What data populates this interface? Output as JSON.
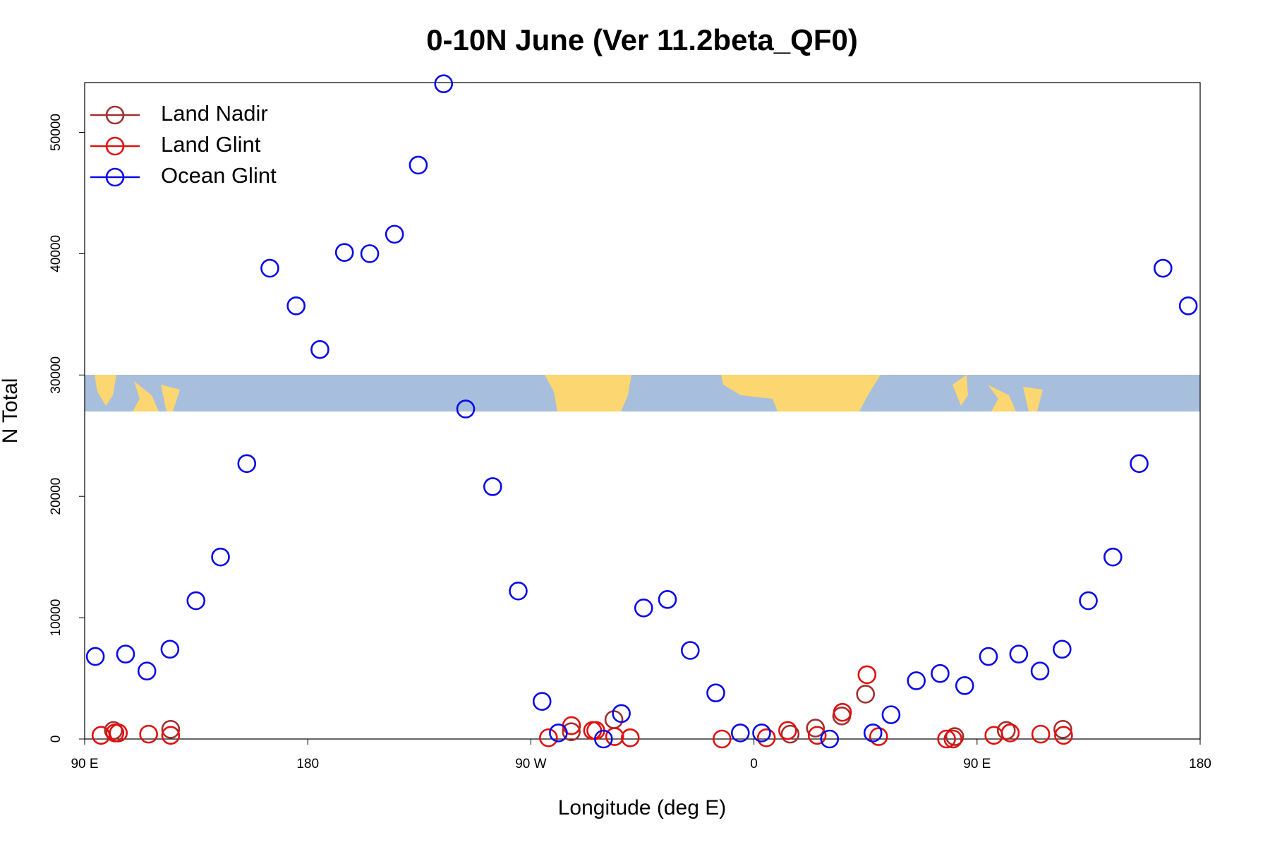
{
  "chart_data": {
    "type": "scatter",
    "title": "0-10N June (Ver 11.2beta_QF0)",
    "x_label": "Longitude (deg E)",
    "y_label": "N Total",
    "xlim": [
      90,
      540
    ],
    "ylim": [
      0,
      54100
    ],
    "xticks": [
      {
        "value": 90,
        "label": "90 E"
      },
      180,
      {
        "value": 270,
        "label": "90 W"
      },
      {
        "value": 360,
        "label": "0"
      },
      {
        "value": 450,
        "label": "90 E"
      },
      {
        "value": 540,
        "label": "180"
      }
    ],
    "yticks": [
      0,
      10000,
      20000,
      30000,
      40000,
      50000
    ],
    "legend": "top-left",
    "series": [
      {
        "name": "Land Nadir",
        "color": "#a0302f",
        "x": [
          101.6,
          124.7,
          286.3,
          303.5,
          374.6,
          384.8,
          395.4,
          405.0,
          441.0,
          461.8,
          484.6
        ],
        "values": [
          700,
          800,
          600,
          1600,
          400,
          900,
          1900,
          3700,
          200,
          700,
          800
        ]
      },
      {
        "name": "Land Glint",
        "color": "#e01010",
        "x": [
          96.6,
          102.2,
          103.6,
          115.8,
          124.7,
          277.1,
          286.4,
          294.9,
          296.2,
          303.8,
          310.1,
          347.1,
          365.0,
          373.6,
          385.5,
          395.7,
          405.6,
          410.3,
          437.7,
          440.3,
          456.8,
          463.4,
          475.7,
          484.9
        ],
        "values": [
          300,
          500,
          500,
          400,
          300,
          100,
          1100,
          700,
          700,
          200,
          100,
          0,
          100,
          700,
          300,
          2200,
          5300,
          200,
          0,
          0,
          300,
          500,
          400,
          300
        ]
      },
      {
        "name": "Ocean Glint",
        "color": "#0a0ae6",
        "x": [
          94.3,
          106.5,
          115.1,
          124.4,
          134.9,
          144.8,
          155.4,
          164.7,
          175.3,
          184.9,
          194.8,
          205.0,
          215.0,
          224.6,
          234.8,
          243.7,
          254.6,
          264.9,
          274.5,
          281.1,
          299.3,
          306.5,
          315.5,
          325.1,
          334.3,
          344.6,
          354.5,
          363.1,
          390.5,
          408.0,
          415.3,
          425.5,
          435.1,
          445.0,
          454.6,
          466.8,
          475.4,
          484.3,
          494.9,
          504.8,
          515.4,
          525.0,
          535.2
        ],
        "values": [
          6800,
          7000,
          5600,
          7400,
          11400,
          15000,
          22700,
          38800,
          35700,
          32100,
          40100,
          40000,
          41600,
          47300,
          54000,
          27200,
          20800,
          12200,
          3100,
          500,
          0,
          2100,
          10800,
          11500,
          7300,
          3800,
          500,
          500,
          0,
          500,
          2000,
          4800,
          5400,
          4400,
          6800,
          7000,
          5600,
          7400,
          11400,
          15000,
          22700,
          38800,
          35700
        ]
      }
    ]
  }
}
